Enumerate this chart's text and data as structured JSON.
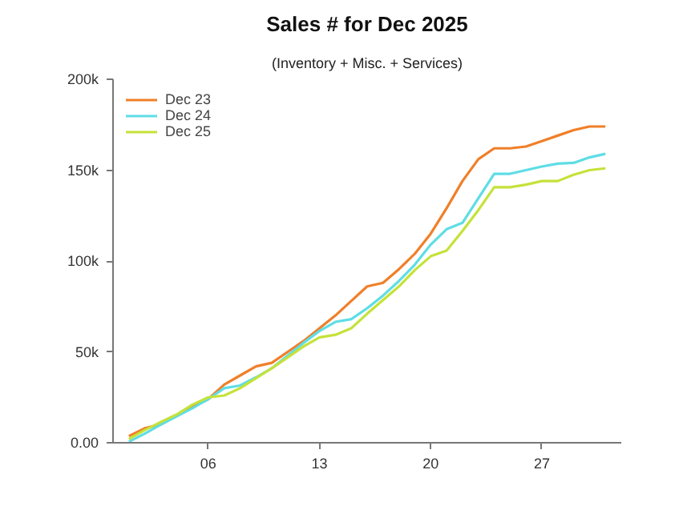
{
  "chart_data": {
    "type": "line",
    "title": "Sales # for Dec 2025",
    "subtitle": "(Inventory + Misc. + Services)",
    "x": [
      1,
      2,
      3,
      4,
      5,
      6,
      7,
      8,
      9,
      10,
      11,
      12,
      13,
      14,
      15,
      16,
      17,
      18,
      19,
      20,
      21,
      22,
      23,
      24,
      25,
      26,
      27,
      28,
      29,
      30,
      31
    ],
    "xlim": [
      0,
      32
    ],
    "xticks": [
      {
        "value": 6,
        "label": "06"
      },
      13,
      20,
      27
    ],
    "ylim": [
      0,
      200000
    ],
    "yticks": [
      {
        "value": 0,
        "label": "0.00"
      },
      {
        "value": 50000,
        "label": "50k"
      },
      {
        "value": 100000,
        "label": "100k"
      },
      {
        "value": 150000,
        "label": "150k"
      },
      {
        "value": 200000,
        "label": "200k"
      }
    ],
    "series": [
      {
        "name": "Dec 23",
        "color": "#f07f29",
        "values": [
          3700,
          8000,
          10000,
          15000,
          20000,
          24000,
          32000,
          37000,
          42000,
          44000,
          50000,
          56000,
          63000,
          70000,
          78000,
          86000,
          88000,
          95500,
          104000,
          115000,
          129000,
          144000,
          156000,
          162000,
          162000,
          163000,
          166000,
          169000,
          172000,
          174000,
          174000
        ]
      },
      {
        "name": "Dec 24",
        "color": "#5fdde5",
        "values": [
          600,
          5000,
          10000,
          14500,
          19000,
          24000,
          30000,
          31500,
          36000,
          41000,
          48000,
          55000,
          61500,
          66500,
          68000,
          74000,
          81000,
          89000,
          98000,
          109000,
          117500,
          121000,
          134500,
          148000,
          148000,
          150000,
          152000,
          153600,
          154000,
          157000,
          159000
        ]
      },
      {
        "name": "Dec 25",
        "color": "#c5e23a",
        "values": [
          2000,
          7000,
          11400,
          15500,
          21000,
          25000,
          26000,
          30000,
          35500,
          41000,
          47000,
          53000,
          58000,
          59400,
          63000,
          71000,
          78500,
          86000,
          95000,
          102600,
          105700,
          116500,
          128000,
          140600,
          140600,
          142000,
          144000,
          144000,
          147500,
          150000,
          151000
        ]
      }
    ],
    "grid": false,
    "legend": "top left",
    "marker": "none",
    "line_style": "solid"
  }
}
